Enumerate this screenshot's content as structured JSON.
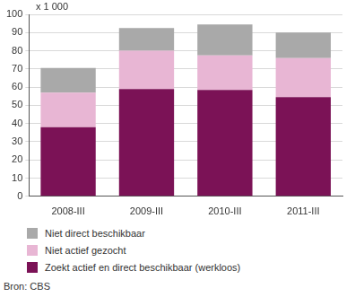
{
  "chart_data": {
    "type": "bar",
    "ylabel": "x 1 000",
    "source": "Bron: CBS",
    "categories": [
      "2008-III",
      "2009-III",
      "2010-III",
      "2011-III"
    ],
    "series": [
      {
        "name": "Zoekt actief en direct beschikbaar (werkloos)",
        "color": "#7b1256",
        "values": [
          38,
          59,
          58.5,
          54.5
        ]
      },
      {
        "name": "Niet actief gezocht",
        "color": "#e8b6d4",
        "values": [
          19,
          21,
          19,
          21.5
        ]
      },
      {
        "name": "Niet direct beschikbaar",
        "color": "#a9a9a9",
        "values": [
          13.5,
          12.5,
          17,
          14
        ]
      }
    ],
    "stacked": true,
    "ylim": [
      0,
      100
    ],
    "yticks": [
      0,
      10,
      20,
      30,
      40,
      50,
      60,
      70,
      80,
      90,
      100
    ],
    "grid": true,
    "legend": "bottom"
  }
}
